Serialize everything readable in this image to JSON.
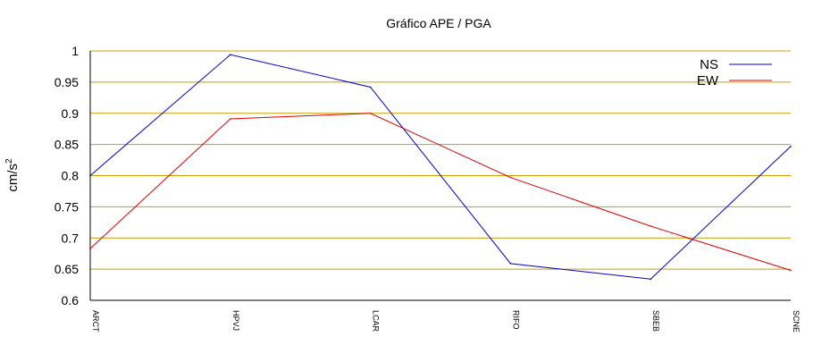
{
  "chart_data": {
    "type": "line",
    "title": "Gráfico  APE / PGA",
    "xlabel": "",
    "ylabel": "cm/s",
    "ylabel_superscript": "2",
    "categories": [
      "ARCT",
      "HPVJ",
      "LCAR",
      "RIFO",
      "SBEB",
      "SCNE"
    ],
    "ylim": [
      0.6,
      1.0
    ],
    "yticks": [
      "1",
      "0.95",
      "0.9",
      "0.85",
      "0.8",
      "0.75",
      "0.7",
      "0.65",
      "0.6"
    ],
    "grid": true,
    "legend_position": "top-right",
    "series": [
      {
        "name": "NS",
        "color": "#0000cc",
        "values": [
          0.8,
          0.994,
          0.942,
          0.659,
          0.634,
          0.847
        ]
      },
      {
        "name": "EW",
        "color": "#dd0000",
        "values": [
          0.683,
          0.891,
          0.9,
          0.797,
          0.719,
          0.648
        ]
      }
    ],
    "colors": {
      "grid": "#c8a000",
      "axis": "#000000"
    }
  }
}
